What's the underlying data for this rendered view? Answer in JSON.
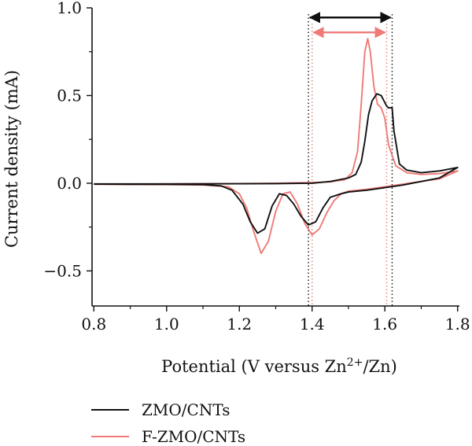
{
  "chart_data": {
    "type": "line",
    "xlabel": "Potential (V versus Zn",
    "xlabel_sup": "2+",
    "xlabel_tail": "/Zn)",
    "ylabel": "Current density (mA)",
    "xlim": [
      0.795,
      1.805
    ],
    "ylim": [
      -0.7,
      1.0
    ],
    "x_ticks": [
      0.8,
      1.0,
      1.2,
      1.4,
      1.6,
      1.8
    ],
    "x_tick_labels": [
      "0.8",
      "1.0",
      "1.2",
      "1.4",
      "1.6",
      "1.8"
    ],
    "y_ticks": [
      -0.5,
      0.0,
      0.5,
      1.0
    ],
    "y_tick_labels": [
      "−0.5",
      "0.0",
      "0.5",
      "1.0"
    ],
    "grid": false,
    "legend_position": "bottom",
    "colors": {
      "zmo": "#111111",
      "fzmo": "#ee7b78"
    },
    "series": [
      {
        "name": "ZMO/CNTs",
        "color": "#111111",
        "reduction": [
          [
            0.8,
            -0.005
          ],
          [
            0.9,
            -0.006
          ],
          [
            1.0,
            -0.006
          ],
          [
            1.1,
            -0.008
          ],
          [
            1.15,
            -0.015
          ],
          [
            1.18,
            -0.04
          ],
          [
            1.21,
            -0.12
          ],
          [
            1.23,
            -0.22
          ],
          [
            1.25,
            -0.285
          ],
          [
            1.27,
            -0.26
          ],
          [
            1.29,
            -0.13
          ],
          [
            1.31,
            -0.06
          ],
          [
            1.33,
            -0.07
          ],
          [
            1.35,
            -0.12
          ],
          [
            1.37,
            -0.19
          ],
          [
            1.39,
            -0.238
          ],
          [
            1.41,
            -0.22
          ],
          [
            1.43,
            -0.14
          ],
          [
            1.45,
            -0.08
          ],
          [
            1.48,
            -0.06
          ],
          [
            1.5,
            -0.05
          ],
          [
            1.55,
            -0.04
          ],
          [
            1.6,
            -0.025
          ],
          [
            1.65,
            -0.01
          ],
          [
            1.7,
            0.01
          ],
          [
            1.75,
            0.03
          ],
          [
            1.8,
            0.09
          ]
        ],
        "oxidation": [
          [
            1.8,
            0.09
          ],
          [
            1.75,
            0.07
          ],
          [
            1.7,
            0.06
          ],
          [
            1.66,
            0.075
          ],
          [
            1.64,
            0.11
          ],
          [
            1.625,
            0.3
          ],
          [
            1.62,
            0.43
          ],
          [
            1.61,
            0.43
          ],
          [
            1.605,
            0.44
          ],
          [
            1.6,
            0.46
          ],
          [
            1.59,
            0.5
          ],
          [
            1.578,
            0.51
          ],
          [
            1.565,
            0.47
          ],
          [
            1.555,
            0.39
          ],
          [
            1.545,
            0.24
          ],
          [
            1.535,
            0.12
          ],
          [
            1.52,
            0.05
          ],
          [
            1.5,
            0.03
          ],
          [
            1.45,
            0.01
          ],
          [
            1.4,
            0.0
          ],
          [
            1.3,
            -0.002
          ],
          [
            1.2,
            -0.003
          ],
          [
            1.0,
            -0.004
          ],
          [
            0.8,
            -0.004
          ]
        ]
      },
      {
        "name": "F-ZMO/CNTs",
        "color": "#ee7b78",
        "reduction": [
          [
            0.8,
            -0.006
          ],
          [
            0.9,
            -0.007
          ],
          [
            1.0,
            -0.008
          ],
          [
            1.1,
            -0.01
          ],
          [
            1.17,
            -0.02
          ],
          [
            1.2,
            -0.06
          ],
          [
            1.22,
            -0.14
          ],
          [
            1.24,
            -0.28
          ],
          [
            1.26,
            -0.4
          ],
          [
            1.28,
            -0.33
          ],
          [
            1.3,
            -0.16
          ],
          [
            1.32,
            -0.06
          ],
          [
            1.34,
            -0.05
          ],
          [
            1.36,
            -0.12
          ],
          [
            1.38,
            -0.23
          ],
          [
            1.4,
            -0.295
          ],
          [
            1.42,
            -0.26
          ],
          [
            1.44,
            -0.17
          ],
          [
            1.46,
            -0.1
          ],
          [
            1.48,
            -0.06
          ],
          [
            1.5,
            -0.045
          ],
          [
            1.55,
            -0.035
          ],
          [
            1.6,
            -0.02
          ],
          [
            1.65,
            -0.005
          ],
          [
            1.7,
            0.01
          ],
          [
            1.75,
            0.025
          ],
          [
            1.8,
            0.07
          ]
        ],
        "oxidation": [
          [
            1.8,
            0.07
          ],
          [
            1.75,
            0.055
          ],
          [
            1.7,
            0.05
          ],
          [
            1.66,
            0.06
          ],
          [
            1.63,
            0.1
          ],
          [
            1.61,
            0.22
          ],
          [
            1.6,
            0.37
          ],
          [
            1.59,
            0.43
          ],
          [
            1.58,
            0.45
          ],
          [
            1.57,
            0.55
          ],
          [
            1.56,
            0.75
          ],
          [
            1.553,
            0.825
          ],
          [
            1.545,
            0.75
          ],
          [
            1.535,
            0.45
          ],
          [
            1.525,
            0.18
          ],
          [
            1.51,
            0.06
          ],
          [
            1.49,
            0.02
          ],
          [
            1.45,
            0.008
          ],
          [
            1.4,
            0.004
          ],
          [
            1.3,
            0.0
          ],
          [
            1.2,
            -0.002
          ],
          [
            1.0,
            -0.004
          ],
          [
            0.8,
            -0.005
          ]
        ]
      }
    ],
    "annotations": {
      "black_bounds": [
        1.39,
        1.62
      ],
      "red_bounds": [
        1.4,
        1.605
      ],
      "black_arrow_y": 0.945,
      "red_arrow_y": 0.86
    }
  }
}
